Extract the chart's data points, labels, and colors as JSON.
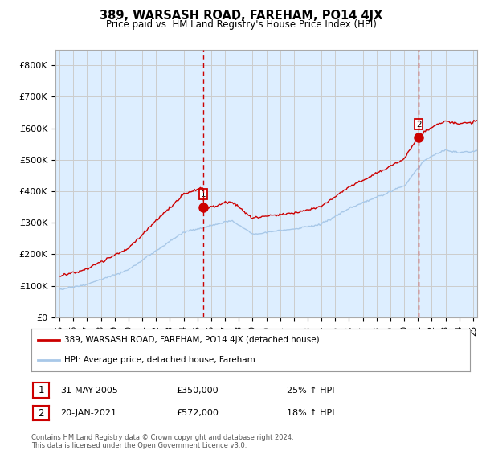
{
  "title": "389, WARSASH ROAD, FAREHAM, PO14 4JX",
  "subtitle": "Price paid vs. HM Land Registry's House Price Index (HPI)",
  "legend_line1": "389, WARSASH ROAD, FAREHAM, PO14 4JX (detached house)",
  "legend_line2": "HPI: Average price, detached house, Fareham",
  "annotation1": {
    "num": "1",
    "date": "31-MAY-2005",
    "price": "£350,000",
    "hpi": "25% ↑ HPI"
  },
  "annotation2": {
    "num": "2",
    "date": "20-JAN-2021",
    "price": "£572,000",
    "hpi": "18% ↑ HPI"
  },
  "footer": "Contains HM Land Registry data © Crown copyright and database right 2024.\nThis data is licensed under the Open Government Licence v3.0.",
  "ylabel_ticks": [
    "£0",
    "£100K",
    "£200K",
    "£300K",
    "£400K",
    "£500K",
    "£600K",
    "£700K",
    "£800K"
  ],
  "ytick_values": [
    0,
    100000,
    200000,
    300000,
    400000,
    500000,
    600000,
    700000,
    800000
  ],
  "ylim": [
    0,
    850000
  ],
  "xlim_start": 1994.7,
  "xlim_end": 2025.3,
  "hpi_color": "#a8c8e8",
  "sale_color": "#cc0000",
  "vline_color": "#cc0000",
  "grid_color": "#cccccc",
  "plot_bg_color": "#ddeeff",
  "background_color": "#ffffff",
  "marker1_x": 2005.42,
  "marker1_y": 350000,
  "marker2_x": 2021.05,
  "marker2_y": 572000,
  "xtick_labels": [
    "95",
    "96",
    "97",
    "98",
    "99",
    "00",
    "01",
    "02",
    "03",
    "04",
    "05",
    "06",
    "07",
    "08",
    "09",
    "10",
    "11",
    "12",
    "13",
    "14",
    "15",
    "16",
    "17",
    "18",
    "19",
    "20",
    "21",
    "22",
    "23",
    "24",
    "25"
  ],
  "xtick_years": [
    1995,
    1996,
    1997,
    1998,
    1999,
    2000,
    2001,
    2002,
    2003,
    2004,
    2005,
    2006,
    2007,
    2008,
    2009,
    2010,
    2011,
    2012,
    2013,
    2014,
    2015,
    2016,
    2017,
    2018,
    2019,
    2020,
    2021,
    2022,
    2023,
    2024,
    2025
  ]
}
